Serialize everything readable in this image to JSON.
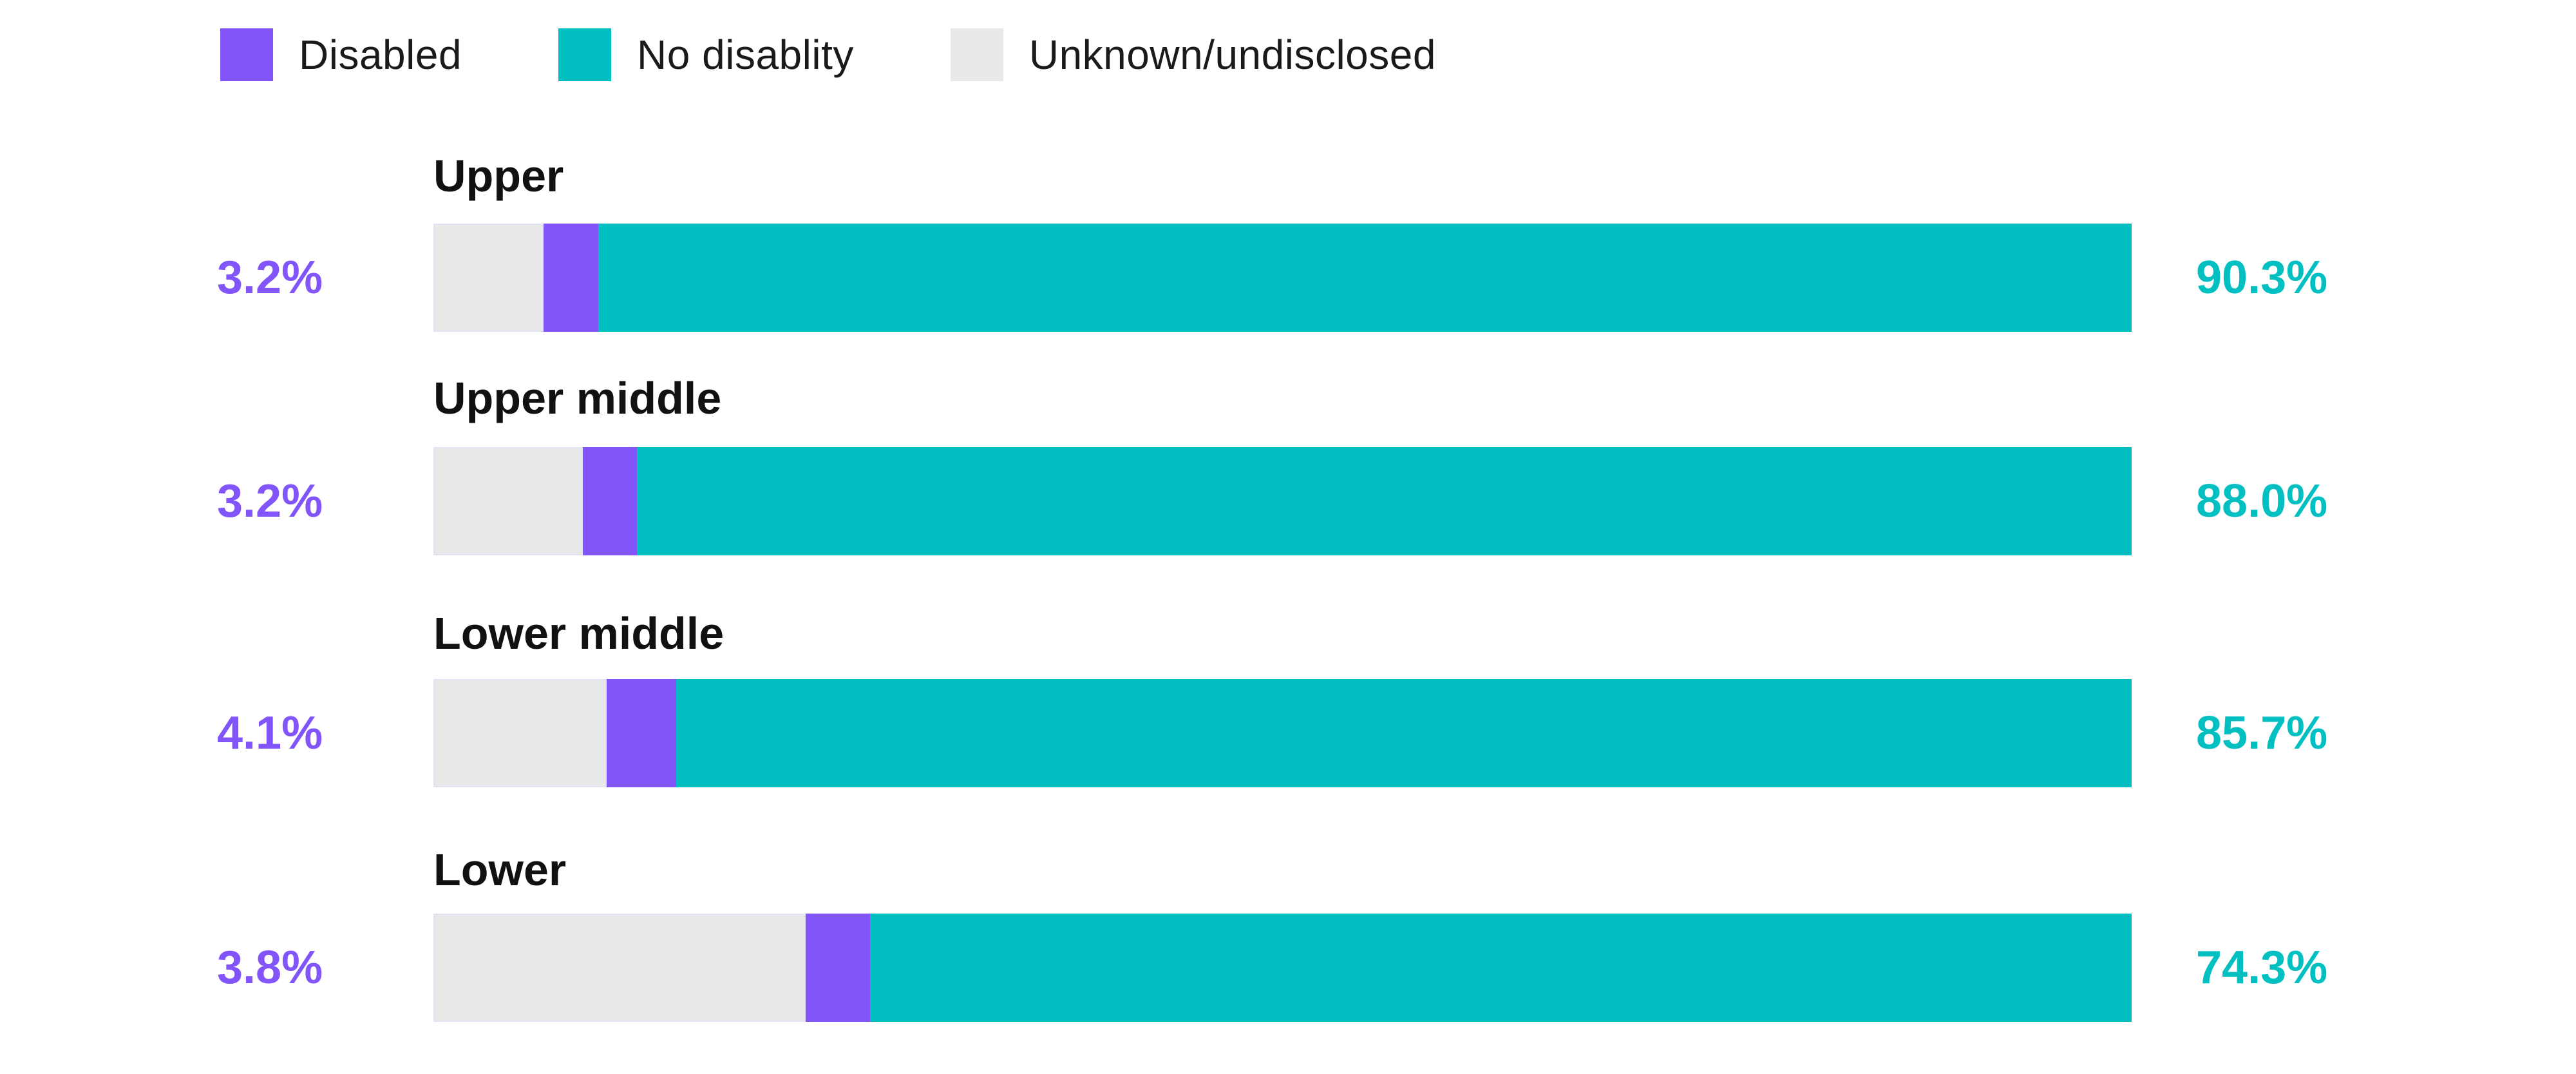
{
  "colors": {
    "disabled": "#8155FA",
    "no_disability": "#02BFC2",
    "unknown": "#E9E9EA",
    "label_text": "#111111",
    "legend_text": "#1A1A1A"
  },
  "legend": {
    "items": [
      {
        "key": "disabled",
        "label": "Disabled"
      },
      {
        "key": "no_disability",
        "label": "No disablity"
      },
      {
        "key": "unknown",
        "label": "Unknown/undisclosed"
      }
    ]
  },
  "chart_data": {
    "type": "bar",
    "orientation": "horizontal",
    "stacked": true,
    "unit": "percent",
    "legend_position": "top",
    "grid": false,
    "axis_labels_shown": false,
    "segment_order": [
      "Unknown/undisclosed",
      "Disabled",
      "No disablity"
    ],
    "categories": [
      "Upper",
      "Upper middle",
      "Lower middle",
      "Lower"
    ],
    "series": [
      {
        "name": "Unknown/undisclosed",
        "values": [
          6.5,
          8.8,
          10.2,
          21.9
        ]
      },
      {
        "name": "Disabled",
        "values": [
          3.2,
          3.2,
          4.1,
          3.8
        ]
      },
      {
        "name": "No disablity",
        "values": [
          90.3,
          88.0,
          85.7,
          74.3
        ]
      }
    ],
    "rows": [
      {
        "label": "Upper",
        "left_value": "3.2%",
        "right_value": "90.3%",
        "unknown_pct": 6.5,
        "disabled_pct": 3.2,
        "no_disability_pct": 90.3
      },
      {
        "label": "Upper middle",
        "left_value": "3.2%",
        "right_value": "88.0%",
        "unknown_pct": 8.8,
        "disabled_pct": 3.2,
        "no_disability_pct": 88.0
      },
      {
        "label": "Lower middle",
        "left_value": "4.1%",
        "right_value": "85.7%",
        "unknown_pct": 10.2,
        "disabled_pct": 4.1,
        "no_disability_pct": 85.7
      },
      {
        "label": "Lower",
        "left_value": "3.8%",
        "right_value": "74.3%",
        "unknown_pct": 21.9,
        "disabled_pct": 3.8,
        "no_disability_pct": 74.3
      }
    ]
  }
}
